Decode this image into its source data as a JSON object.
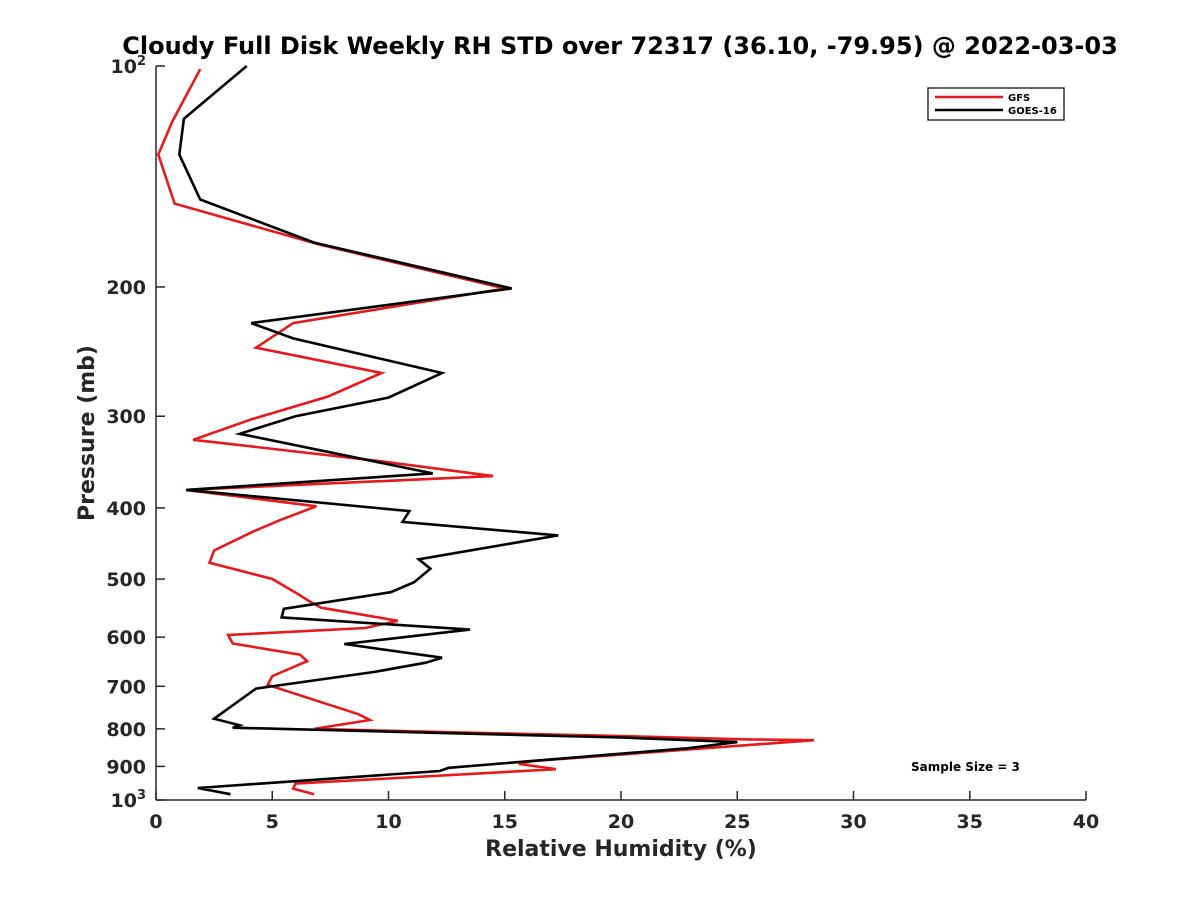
{
  "chart_data": {
    "type": "line",
    "title": "Cloudy Full Disk Weekly RH STD over 72317 (36.10, -79.95) @ 2022-03-03",
    "xlabel": "Relative Humidity (%)",
    "ylabel": "Pressure (mb)",
    "xlim": [
      0,
      40
    ],
    "ylim": [
      100,
      1000
    ],
    "y_scale": "log",
    "y_reversed": true,
    "grid": false,
    "legend_position": "top-right",
    "x_ticks": [
      "0",
      "5",
      "10",
      "15",
      "20",
      "25",
      "30",
      "35",
      "40"
    ],
    "y_ticks": [
      {
        "value": 100,
        "base": "10",
        "exp": "2"
      },
      {
        "value": 200,
        "label": "200"
      },
      {
        "value": 300,
        "label": "300"
      },
      {
        "value": 400,
        "label": "400"
      },
      {
        "value": 500,
        "label": "500"
      },
      {
        "value": 600,
        "label": "600"
      },
      {
        "value": 700,
        "label": "700"
      },
      {
        "value": 800,
        "label": "800"
      },
      {
        "value": 900,
        "label": "900"
      },
      {
        "value": 1000,
        "base": "10",
        "exp": "3"
      }
    ],
    "annotation": "Sample Size = 3",
    "series": [
      {
        "name": "GFS",
        "color": "#e41a1c",
        "points": [
          [
            6.8,
            982
          ],
          [
            5.9,
            965
          ],
          [
            6.0,
            950
          ],
          [
            17.2,
            908
          ],
          [
            15.6,
            893
          ],
          [
            16.2,
            885
          ],
          [
            28.3,
            829
          ],
          [
            25.5,
            827
          ],
          [
            20.0,
            818
          ],
          [
            13.0,
            809
          ],
          [
            6.8,
            800
          ],
          [
            9.2,
            778
          ],
          [
            8.7,
            764
          ],
          [
            4.8,
            697
          ],
          [
            5.0,
            678
          ],
          [
            6.5,
            647
          ],
          [
            6.2,
            634
          ],
          [
            3.3,
            612
          ],
          [
            3.1,
            596
          ],
          [
            9.0,
            583
          ],
          [
            10.4,
            570
          ],
          [
            7.1,
            547
          ],
          [
            6.6,
            536
          ],
          [
            6.1,
            524
          ],
          [
            5.0,
            500
          ],
          [
            2.3,
            475
          ],
          [
            2.5,
            457
          ],
          [
            4.1,
            432
          ],
          [
            5.3,
            416
          ],
          [
            6.9,
            398
          ],
          [
            1.3,
            378
          ],
          [
            14.5,
            362
          ],
          [
            9.5,
            345
          ],
          [
            1.6,
            323
          ],
          [
            4.1,
            303
          ],
          [
            7.4,
            282
          ],
          [
            9.7,
            262
          ],
          [
            4.3,
            242
          ],
          [
            5.9,
            224
          ],
          [
            15.0,
            201
          ],
          [
            7.0,
            175
          ],
          [
            0.8,
            154
          ],
          [
            0.1,
            132
          ],
          [
            0.7,
            119
          ],
          [
            1.9,
            101
          ]
        ]
      },
      {
        "name": "GOES-16",
        "color": "#000000",
        "points": [
          [
            3.2,
            982
          ],
          [
            1.8,
            963
          ],
          [
            12.2,
            913
          ],
          [
            12.6,
            904
          ],
          [
            22.9,
            850
          ],
          [
            25.0,
            834
          ],
          [
            20.0,
            822
          ],
          [
            3.3,
            797
          ],
          [
            3.6,
            791
          ],
          [
            2.5,
            775
          ],
          [
            4.3,
            705
          ],
          [
            9.4,
            669
          ],
          [
            11.6,
            650
          ],
          [
            12.3,
            640
          ],
          [
            8.1,
            613
          ],
          [
            13.5,
            586
          ],
          [
            5.4,
            564
          ],
          [
            5.5,
            549
          ],
          [
            10.1,
            521
          ],
          [
            11.1,
            505
          ],
          [
            11.8,
            484
          ],
          [
            11.3,
            470
          ],
          [
            17.3,
            436
          ],
          [
            10.6,
            418
          ],
          [
            10.9,
            404
          ],
          [
            1.3,
            378
          ],
          [
            11.9,
            359
          ],
          [
            3.6,
            317
          ],
          [
            6.0,
            300
          ],
          [
            10.0,
            283
          ],
          [
            12.3,
            262
          ],
          [
            5.9,
            235
          ],
          [
            4.1,
            224
          ],
          [
            15.3,
            201
          ],
          [
            6.8,
            174
          ],
          [
            1.9,
            152
          ],
          [
            1.0,
            132
          ],
          [
            1.2,
            118
          ],
          [
            3.9,
            100
          ]
        ]
      }
    ]
  }
}
